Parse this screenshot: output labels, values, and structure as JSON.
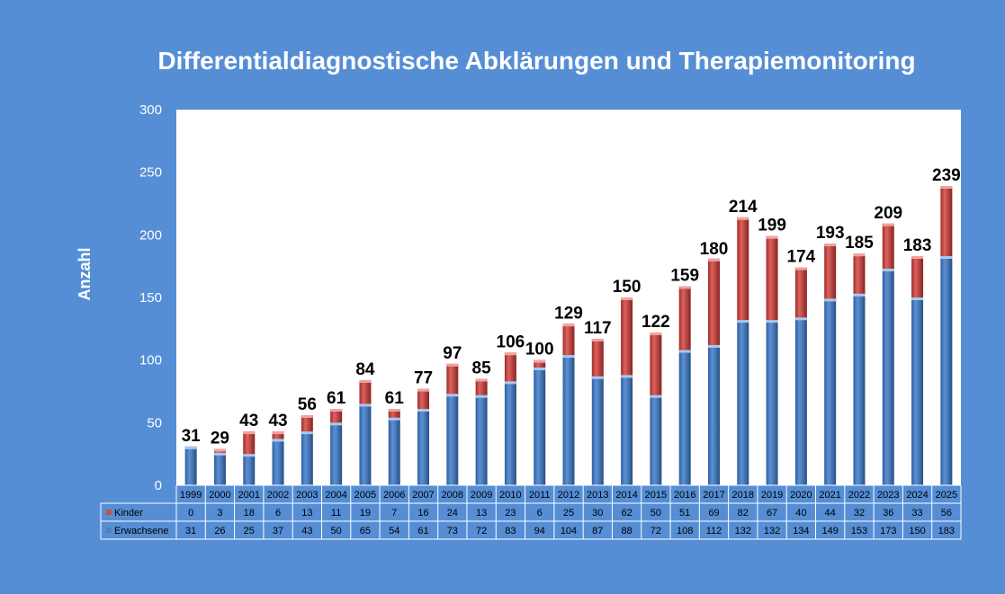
{
  "chart_data": {
    "type": "bar",
    "stacked": true,
    "title": "Differentialdiagnostische Abklärungen und Therapiemonitoring",
    "xlabel": "",
    "ylabel": "Anzahl",
    "ylim": [
      0,
      300
    ],
    "yticks": [
      0,
      50,
      100,
      150,
      200,
      250,
      300
    ],
    "categories": [
      "1999",
      "2000",
      "2001",
      "2002",
      "2003",
      "2004",
      "2005",
      "2006",
      "2007",
      "2008",
      "2009",
      "2010",
      "2011",
      "2012",
      "2013",
      "2014",
      "2015",
      "2016",
      "2017",
      "2018",
      "2019",
      "2020",
      "2021",
      "2022",
      "2023",
      "2024",
      "2025"
    ],
    "series": [
      {
        "name": "Erwachsene",
        "color": "#4f81bd",
        "values": [
          31,
          26,
          25,
          37,
          43,
          50,
          65,
          54,
          61,
          73,
          72,
          83,
          94,
          104,
          87,
          88,
          72,
          108,
          112,
          132,
          132,
          134,
          149,
          153,
          173,
          150,
          183
        ]
      },
      {
        "name": "Kinder",
        "color": "#c0504d",
        "values": [
          0,
          3,
          18,
          6,
          13,
          11,
          19,
          7,
          16,
          24,
          13,
          23,
          6,
          25,
          30,
          62,
          50,
          51,
          69,
          82,
          67,
          40,
          44,
          32,
          36,
          33,
          56
        ]
      }
    ],
    "totals": [
      31,
      29,
      43,
      43,
      56,
      61,
      84,
      61,
      77,
      97,
      85,
      106,
      100,
      129,
      117,
      150,
      122,
      159,
      180,
      214,
      199,
      174,
      193,
      185,
      209,
      183,
      239
    ],
    "legend": "data-table",
    "grid": false
  }
}
